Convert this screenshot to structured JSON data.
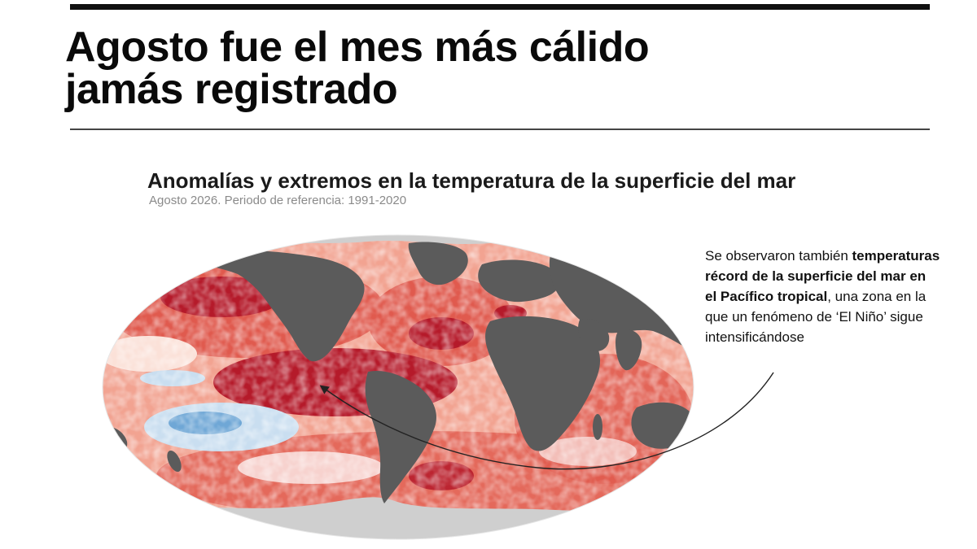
{
  "headline": {
    "line1": "Agosto fue el mes más cálido",
    "line2": "jamás registrado"
  },
  "map": {
    "title": "Anomalías y extremos en la temperatura de la superficie del mar",
    "subtitle": "Agosto 2026. Periodo de referencia: 1991-2020",
    "colors": {
      "land": "#5b5b5b",
      "ice": "#cfcfcf",
      "anomaly_extreme": "#b51a2a",
      "anomaly_high": "#e05a4e",
      "anomaly_moderate": "#f2a391",
      "anomaly_slight": "#fbe1d8",
      "neutral": "#ffffff",
      "cool_slight": "#c9def0",
      "cool": "#6fa7d6"
    }
  },
  "annotation": {
    "part1": "Se observaron también ",
    "bold": "temperaturas récord de la superficie del mar en el Pacífico tropical",
    "part2": ", una zona en la que un fenómeno de ‘El Niño’ sigue intensificándose"
  }
}
